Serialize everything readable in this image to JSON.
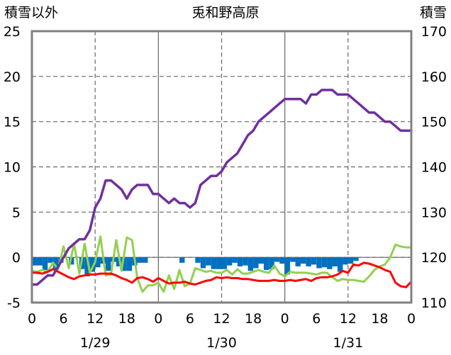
{
  "chart_data": {
    "type": "line",
    "title": "兎和野高原",
    "left_axis": {
      "label": "積雪以外",
      "min": -5,
      "max": 25,
      "ticks": [
        25,
        20,
        15,
        10,
        5,
        0,
        -5
      ]
    },
    "right_axis": {
      "label": "積雪",
      "min": 110,
      "max": 170,
      "ticks": [
        170,
        160,
        150,
        140,
        130,
        120,
        110
      ]
    },
    "x_axis": {
      "hour_ticks": [
        "0",
        "6",
        "12",
        "18",
        "0",
        "6",
        "12",
        "18",
        "0",
        "6",
        "12",
        "18",
        "0"
      ],
      "date_labels": [
        {
          "label": "1/29",
          "at_hour": 12
        },
        {
          "label": "1/30",
          "at_hour": 36
        },
        {
          "label": "1/31",
          "at_hour": 60
        }
      ],
      "hours_total": 72,
      "solid_gridlines_at": [
        24,
        48
      ],
      "dashed_gridlines_at": [
        12,
        36,
        60
      ]
    },
    "grid": true,
    "colors": {
      "snow_depth": "#7030a0",
      "temperature": "#ff0000",
      "wind": "#92d050",
      "precip": "#0070c0",
      "grid": "#666666",
      "frame": "#808080"
    },
    "series": [
      {
        "axis": "right",
        "color": "#7030a0",
        "data": [
          [
            0,
            114
          ],
          [
            1,
            114
          ],
          [
            2,
            115
          ],
          [
            3,
            116
          ],
          [
            4,
            116
          ],
          [
            5,
            118
          ],
          [
            6,
            120
          ],
          [
            7,
            122
          ],
          [
            8,
            123
          ],
          [
            9,
            124
          ],
          [
            10,
            124
          ],
          [
            11,
            126
          ],
          [
            12,
            131
          ],
          [
            13,
            133
          ],
          [
            14,
            137
          ],
          [
            15,
            137
          ],
          [
            16,
            136
          ],
          [
            17,
            135
          ],
          [
            18,
            133
          ],
          [
            19,
            135
          ],
          [
            20,
            136
          ],
          [
            21,
            136
          ],
          [
            22,
            136
          ],
          [
            23,
            134
          ],
          [
            24,
            134
          ],
          [
            25,
            133
          ],
          [
            26,
            132
          ],
          [
            27,
            133
          ],
          [
            28,
            132
          ],
          [
            29,
            132
          ],
          [
            30,
            131
          ],
          [
            31,
            132
          ],
          [
            32,
            136
          ],
          [
            33,
            137
          ],
          [
            34,
            138
          ],
          [
            35,
            138
          ],
          [
            36,
            139
          ],
          [
            37,
            141
          ],
          [
            38,
            142
          ],
          [
            39,
            143
          ],
          [
            40,
            145
          ],
          [
            41,
            147
          ],
          [
            42,
            148
          ],
          [
            43,
            150
          ],
          [
            44,
            151
          ],
          [
            45,
            152
          ],
          [
            46,
            153
          ],
          [
            47,
            154
          ],
          [
            48,
            155
          ],
          [
            49,
            155
          ],
          [
            50,
            155
          ],
          [
            51,
            155
          ],
          [
            52,
            154
          ],
          [
            53,
            156
          ],
          [
            54,
            156
          ],
          [
            55,
            157
          ],
          [
            56,
            157
          ],
          [
            57,
            157
          ],
          [
            58,
            156
          ],
          [
            59,
            156
          ],
          [
            60,
            156
          ],
          [
            61,
            155
          ],
          [
            62,
            154
          ],
          [
            63,
            153
          ],
          [
            64,
            152
          ],
          [
            65,
            152
          ],
          [
            66,
            151
          ],
          [
            67,
            150
          ],
          [
            68,
            150
          ],
          [
            69,
            149
          ],
          [
            70,
            148
          ],
          [
            71,
            148
          ],
          [
            72,
            148
          ]
        ]
      },
      {
        "axis": "left",
        "color": "#ff0000",
        "data": [
          [
            0,
            -1.7
          ],
          [
            1,
            -1.7
          ],
          [
            2,
            -1.8
          ],
          [
            3,
            -1.6
          ],
          [
            4,
            -1.3
          ],
          [
            5,
            -1.6
          ],
          [
            6,
            -1.9
          ],
          [
            7,
            -2.2
          ],
          [
            8,
            -2.4
          ],
          [
            9,
            -2.1
          ],
          [
            10,
            -2.0
          ],
          [
            11,
            -1.9
          ],
          [
            12,
            -1.9
          ],
          [
            13,
            -1.8
          ],
          [
            14,
            -1.8
          ],
          [
            15,
            -1.8
          ],
          [
            16,
            -2.0
          ],
          [
            17,
            -2.3
          ],
          [
            18,
            -2.5
          ],
          [
            19,
            -2.8
          ],
          [
            20,
            -2.3
          ],
          [
            21,
            -2.2
          ],
          [
            22,
            -2.4
          ],
          [
            23,
            -2.7
          ],
          [
            24,
            -2.3
          ],
          [
            25,
            -2.6
          ],
          [
            26,
            -2.9
          ],
          [
            27,
            -2.8
          ],
          [
            28,
            -2.8
          ],
          [
            29,
            -2.7
          ],
          [
            30,
            -2.9
          ],
          [
            31,
            -3.0
          ],
          [
            32,
            -2.8
          ],
          [
            33,
            -2.6
          ],
          [
            34,
            -2.5
          ],
          [
            35,
            -2.2
          ],
          [
            36,
            -2.3
          ],
          [
            37,
            -2.2
          ],
          [
            38,
            -2.3
          ],
          [
            39,
            -2.3
          ],
          [
            40,
            -2.4
          ],
          [
            41,
            -2.4
          ],
          [
            42,
            -2.5
          ],
          [
            43,
            -2.6
          ],
          [
            44,
            -2.6
          ],
          [
            45,
            -2.6
          ],
          [
            46,
            -2.5
          ],
          [
            47,
            -2.6
          ],
          [
            48,
            -2.6
          ],
          [
            49,
            -2.5
          ],
          [
            50,
            -2.6
          ],
          [
            51,
            -2.5
          ],
          [
            52,
            -2.4
          ],
          [
            53,
            -2.6
          ],
          [
            54,
            -2.3
          ],
          [
            55,
            -2.2
          ],
          [
            56,
            -2.2
          ],
          [
            57,
            -2.1
          ],
          [
            58,
            -1.9
          ],
          [
            59,
            -1.5
          ],
          [
            60,
            -1.7
          ],
          [
            61,
            -0.8
          ],
          [
            62,
            -0.9
          ],
          [
            63,
            -0.6
          ],
          [
            64,
            -0.7
          ],
          [
            65,
            -0.9
          ],
          [
            66,
            -1.1
          ],
          [
            67,
            -1.4
          ],
          [
            68,
            -1.6
          ],
          [
            69,
            -2.8
          ],
          [
            70,
            -3.2
          ],
          [
            71,
            -3.3
          ],
          [
            72,
            -2.7
          ]
        ]
      },
      {
        "axis": "left",
        "color": "#92d050",
        "data": [
          [
            0,
            -1.5
          ],
          [
            1,
            -1.6
          ],
          [
            2,
            -1.4
          ],
          [
            3,
            -1.6
          ],
          [
            4,
            -0.6
          ],
          [
            5,
            -1.3
          ],
          [
            6,
            1.2
          ],
          [
            7,
            -1.2
          ],
          [
            8,
            1.5
          ],
          [
            9,
            -1.8
          ],
          [
            10,
            1.5
          ],
          [
            11,
            -1.7
          ],
          [
            12,
            -0.5
          ],
          [
            13,
            2.3
          ],
          [
            14,
            -2.0
          ],
          [
            15,
            -1.9
          ],
          [
            16,
            1.9
          ],
          [
            17,
            -1.5
          ],
          [
            18,
            2.2
          ],
          [
            19,
            1.9
          ],
          [
            20,
            -2.3
          ],
          [
            21,
            -3.8
          ],
          [
            22,
            -3.1
          ],
          [
            23,
            -3.1
          ],
          [
            24,
            -2.8
          ],
          [
            25,
            -3.8
          ],
          [
            26,
            -2.0
          ],
          [
            27,
            -3.5
          ],
          [
            28,
            -1.4
          ],
          [
            29,
            -3.2
          ],
          [
            30,
            -2.9
          ],
          [
            31,
            -1.2
          ],
          [
            32,
            -1.4
          ],
          [
            33,
            -1.6
          ],
          [
            34,
            -1.5
          ],
          [
            35,
            -1.7
          ],
          [
            36,
            -1.7
          ],
          [
            37,
            -1.4
          ],
          [
            38,
            -1.9
          ],
          [
            39,
            -1.3
          ],
          [
            40,
            -1.8
          ],
          [
            41,
            -1.8
          ],
          [
            42,
            -1.6
          ],
          [
            43,
            -1.4
          ],
          [
            44,
            -1.6
          ],
          [
            45,
            -1.7
          ],
          [
            46,
            -0.9
          ],
          [
            47,
            -1.8
          ],
          [
            48,
            -2.1
          ],
          [
            49,
            -1.6
          ],
          [
            50,
            -1.7
          ],
          [
            51,
            -1.7
          ],
          [
            52,
            -1.7
          ],
          [
            53,
            -1.8
          ],
          [
            54,
            -1.9
          ],
          [
            55,
            -1.7
          ],
          [
            56,
            -1.7
          ],
          [
            57,
            -2.2
          ],
          [
            58,
            -2.6
          ],
          [
            59,
            -2.4
          ],
          [
            60,
            -2.5
          ],
          [
            61,
            -2.5
          ],
          [
            62,
            -2.6
          ],
          [
            63,
            -2.7
          ],
          [
            64,
            -2.1
          ],
          [
            65,
            -1.4
          ],
          [
            66,
            -1.0
          ],
          [
            67,
            -0.8
          ],
          [
            68,
            0.0
          ],
          [
            69,
            1.4
          ],
          [
            70,
            1.2
          ],
          [
            71,
            1.1
          ],
          [
            72,
            1.1
          ]
        ]
      }
    ],
    "bars": {
      "axis": "left",
      "color": "#0070c0",
      "values": [
        [
          0,
          -0.9
        ],
        [
          1,
          -0.9
        ],
        [
          2,
          -1.4
        ],
        [
          3,
          -0.6
        ],
        [
          4,
          -1.4
        ],
        [
          5,
          -0.6
        ],
        [
          6,
          0
        ],
        [
          7,
          -0.8
        ],
        [
          8,
          0
        ],
        [
          9,
          -1.3
        ],
        [
          10,
          -2.1
        ],
        [
          11,
          -1.6
        ],
        [
          12,
          -1.1
        ],
        [
          13,
          -0.7
        ],
        [
          14,
          -1.5
        ],
        [
          15,
          -0.5
        ],
        [
          16,
          -1.0
        ],
        [
          17,
          -1.5
        ],
        [
          18,
          -1.5
        ],
        [
          19,
          -0.9
        ],
        [
          20,
          -0.6
        ],
        [
          21,
          -0.6
        ],
        [
          22,
          0
        ],
        [
          23,
          0
        ],
        [
          24,
          0
        ],
        [
          25,
          0
        ],
        [
          26,
          0
        ],
        [
          27,
          0
        ],
        [
          28,
          -0.6
        ],
        [
          29,
          0
        ],
        [
          30,
          0
        ],
        [
          31,
          -0.6
        ],
        [
          32,
          -1.2
        ],
        [
          33,
          -0.9
        ],
        [
          34,
          -1.3
        ],
        [
          35,
          -1.3
        ],
        [
          36,
          -1.3
        ],
        [
          37,
          -0.9
        ],
        [
          38,
          -0.6
        ],
        [
          39,
          -1.0
        ],
        [
          40,
          -0.9
        ],
        [
          41,
          -1.5
        ],
        [
          42,
          -1.2
        ],
        [
          43,
          -0.7
        ],
        [
          44,
          -1.4
        ],
        [
          45,
          -1.3
        ],
        [
          46,
          -0.5
        ],
        [
          47,
          -0.7
        ],
        [
          48,
          -1.9
        ],
        [
          49,
          -0.5
        ],
        [
          50,
          -1.0
        ],
        [
          51,
          -0.7
        ],
        [
          52,
          -1.0
        ],
        [
          53,
          -0.8
        ],
        [
          54,
          -1.2
        ],
        [
          55,
          -1.1
        ],
        [
          56,
          -1.3
        ],
        [
          57,
          -1.0
        ],
        [
          58,
          -1.6
        ],
        [
          59,
          -0.8
        ],
        [
          60,
          -0.7
        ],
        [
          61,
          -0.4
        ],
        [
          62,
          0
        ],
        [
          63,
          0
        ],
        [
          64,
          0
        ],
        [
          65,
          0
        ],
        [
          66,
          0
        ],
        [
          67,
          0
        ],
        [
          68,
          0
        ],
        [
          69,
          0
        ],
        [
          70,
          0
        ],
        [
          71,
          0
        ]
      ]
    }
  }
}
